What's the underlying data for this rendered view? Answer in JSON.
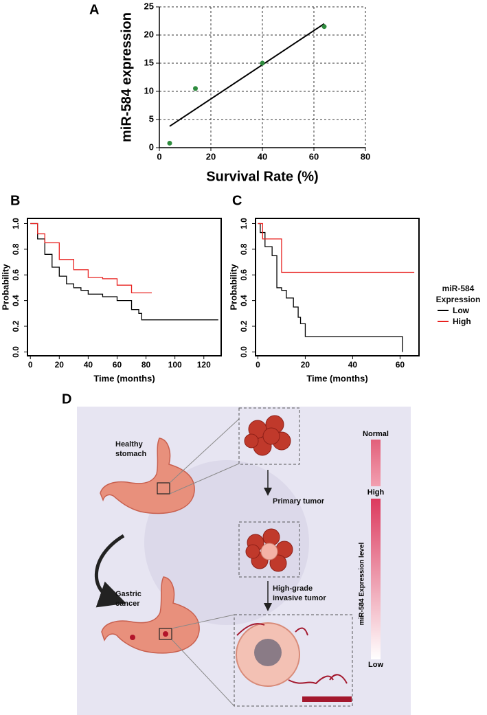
{
  "panel_labels": [
    "A",
    "B",
    "C",
    "D"
  ],
  "chart_data": [
    {
      "type": "scatter",
      "x_label": "Survival Rate (%)",
      "y_label": "miR-584 expression",
      "x": [
        4,
        14,
        40,
        64
      ],
      "values": [
        0.8,
        10.5,
        15,
        21.5
      ],
      "color": "#2e8b3e",
      "fit_line": {
        "x": [
          4,
          64
        ],
        "values": [
          3.8,
          22
        ],
        "color": "#000000"
      },
      "xlim": [
        0,
        80
      ],
      "xticks": [
        0,
        20,
        40,
        60,
        80
      ],
      "ylim": [
        0,
        25
      ],
      "yticks": [
        0,
        5,
        10,
        15,
        20,
        25
      ],
      "grid": true
    },
    {
      "type": "line",
      "step": true,
      "x_label": "Time (months)",
      "y_label": "Probability",
      "series": [
        {
          "color": "#000000",
          "x": [
            0,
            5,
            10,
            15,
            20,
            25,
            30,
            35,
            40,
            50,
            60,
            70,
            75,
            77,
            130
          ],
          "values": [
            1.0,
            0.88,
            0.76,
            0.66,
            0.59,
            0.53,
            0.5,
            0.48,
            0.45,
            0.43,
            0.4,
            0.33,
            0.3,
            0.25,
            0.25
          ]
        },
        {
          "color": "#e8211f",
          "x": [
            0,
            5,
            10,
            20,
            30,
            40,
            50,
            60,
            70,
            84
          ],
          "values": [
            1.0,
            0.92,
            0.85,
            0.72,
            0.64,
            0.58,
            0.57,
            0.52,
            0.46,
            0.46
          ]
        }
      ],
      "xlim": [
        -2,
        132
      ],
      "xticks": [
        0,
        20,
        40,
        60,
        80,
        100,
        120
      ],
      "ylim": [
        -0.03,
        1.04
      ],
      "yticks": [
        {
          "value": 0,
          "label": "0.0"
        },
        0.2,
        0.4,
        0.6,
        0.8,
        {
          "value": 1,
          "label": "1.0"
        }
      ]
    },
    {
      "type": "line",
      "step": true,
      "x_label": "Time (months)",
      "y_label": "Probability",
      "legend_title": "miR-584 Expression",
      "legend": "right",
      "series": [
        {
          "name": "Low",
          "color": "#000000",
          "x": [
            0,
            1,
            3,
            6,
            8,
            10,
            12,
            15,
            17,
            18,
            20,
            61
          ],
          "values": [
            1.0,
            0.93,
            0.82,
            0.75,
            0.5,
            0.48,
            0.42,
            0.35,
            0.27,
            0.22,
            0.12,
            0
          ]
        },
        {
          "name": "High",
          "color": "#e8211f",
          "x": [
            0,
            2,
            10,
            66
          ],
          "values": [
            1.0,
            0.88,
            0.62,
            0.62
          ]
        }
      ],
      "xlim": [
        -1,
        68
      ],
      "xticks": [
        0,
        20,
        40,
        60
      ],
      "ylim": [
        -0.03,
        1.04
      ],
      "yticks": [
        {
          "value": 0,
          "label": "0.0"
        },
        0.2,
        0.4,
        0.6,
        0.8,
        {
          "value": 1,
          "label": "1.0"
        }
      ]
    }
  ],
  "diagram": {
    "healthy": "Healthy stomach",
    "cancer": "Gastric cancer",
    "primary": "Primary tumor",
    "invasive": "High-grade invasive tumor",
    "scale_top": "Normal",
    "scale_mid": "High",
    "scale_bottom": "Low",
    "scale_title": "miR-584 Expression level"
  }
}
